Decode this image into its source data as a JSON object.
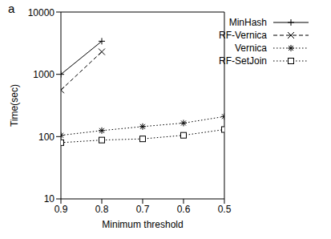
{
  "chart_data": {
    "type": "line",
    "title": "a",
    "x_label": "Minimum threshold",
    "y_label": "Time(sec)",
    "x": [
      0.9,
      0.8,
      0.7,
      0.6,
      0.5
    ],
    "xlim": [
      0.9,
      0.5
    ],
    "xticks": [
      0.9,
      0.8,
      0.7,
      0.6,
      0.5
    ],
    "ylim": [
      10,
      10000
    ],
    "yticks": [
      10,
      100,
      1000,
      10000
    ],
    "log": "y",
    "grid": false,
    "legend": "upper right",
    "series": [
      {
        "name": "MinHash",
        "color": "#000000",
        "marker": "plus",
        "line_style": "solid",
        "values": [
          1000,
          3400,
          null,
          null,
          null
        ]
      },
      {
        "name": "RF-Vernica",
        "color": "#000000",
        "marker": "x",
        "line_style": "dashed",
        "values": [
          560,
          2300,
          null,
          null,
          null
        ]
      },
      {
        "name": "Vernica",
        "color": "#000000",
        "marker": "star",
        "line_style": "dotted",
        "values": [
          105,
          125,
          145,
          165,
          210
        ]
      },
      {
        "name": "RF-SetJoin",
        "color": "#000000",
        "marker": "square",
        "line_style": "dotted",
        "values": [
          80,
          88,
          92,
          105,
          130
        ]
      }
    ]
  }
}
